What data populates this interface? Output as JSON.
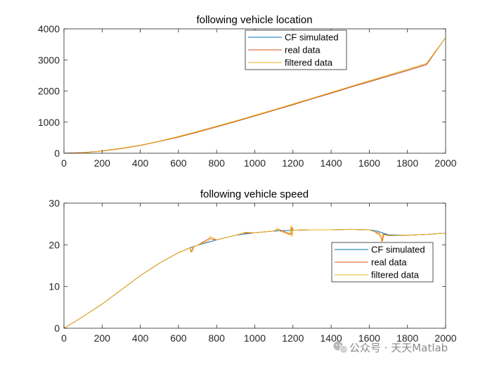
{
  "chart_data": [
    {
      "type": "line",
      "title": "following vehicle location",
      "xlim": [
        0,
        2000
      ],
      "ylim": [
        0,
        4000
      ],
      "xticks": [
        "0",
        "200",
        "400",
        "600",
        "800",
        "1000",
        "1200",
        "1400",
        "1600",
        "1800",
        "2000"
      ],
      "yticks": [
        "0",
        "1000",
        "2000",
        "3000",
        "4000"
      ],
      "grid": false,
      "legend": {
        "placement": "top-center",
        "entries": [
          "CF simulated",
          "real data",
          "filtered data"
        ]
      },
      "series": [
        {
          "name": "CF simulated",
          "color": "#0072BD",
          "x": [
            0,
            100,
            200,
            300,
            400,
            500,
            600,
            700,
            800,
            900,
            1000,
            1100,
            1200,
            1300,
            1400,
            1500,
            1600,
            1700,
            1800,
            1900,
            2000
          ],
          "y": [
            0,
            20,
            70,
            150,
            250,
            380,
            520,
            680,
            850,
            1020,
            1200,
            1380,
            1560,
            1750,
            1930,
            2120,
            2300,
            2480,
            2660,
            2850,
            3720
          ]
        },
        {
          "name": "real data",
          "color": "#D95319",
          "x": [
            0,
            100,
            200,
            300,
            400,
            500,
            600,
            700,
            800,
            900,
            1000,
            1100,
            1200,
            1300,
            1400,
            1500,
            1600,
            1700,
            1800,
            1900,
            2000
          ],
          "y": [
            0,
            20,
            70,
            150,
            250,
            380,
            520,
            680,
            850,
            1020,
            1200,
            1380,
            1560,
            1750,
            1930,
            2120,
            2300,
            2480,
            2660,
            2850,
            3720
          ]
        },
        {
          "name": "filtered data",
          "color": "#EDB120",
          "x": [
            0,
            50,
            100,
            150,
            200,
            300,
            400,
            500,
            600,
            700,
            800,
            900,
            1000,
            1100,
            1200,
            1300,
            1400,
            1500,
            1600,
            1700,
            1800,
            1900,
            2000
          ],
          "y": [
            0,
            2,
            12,
            40,
            80,
            160,
            260,
            390,
            540,
            700,
            870,
            1040,
            1220,
            1400,
            1585,
            1770,
            1955,
            2145,
            2330,
            2515,
            2700,
            2890,
            3720
          ]
        }
      ]
    },
    {
      "type": "line",
      "title": "following vehicle speed",
      "xlim": [
        0,
        2000
      ],
      "ylim": [
        0,
        30
      ],
      "xticks": [
        "0",
        "200",
        "400",
        "600",
        "800",
        "1000",
        "1200",
        "1400",
        "1600",
        "1800",
        "2000"
      ],
      "yticks": [
        "0",
        "10",
        "20",
        "30"
      ],
      "grid": false,
      "legend": {
        "placement": "middle-right",
        "entries": [
          "CF simulated",
          "real data",
          "filtered data"
        ]
      },
      "series": [
        {
          "name": "CF simulated",
          "color": "#0072BD",
          "x": [
            0,
            100,
            200,
            300,
            400,
            500,
            600,
            660,
            700,
            800,
            900,
            1000,
            1100,
            1200,
            1300,
            1400,
            1500,
            1600,
            1640,
            1700,
            1800,
            1900,
            2000
          ],
          "y": [
            0,
            2.8,
            5.8,
            9.2,
            12.6,
            15.6,
            18.1,
            19.3,
            19.9,
            21.2,
            22.3,
            22.9,
            23.3,
            23.5,
            23.6,
            23.6,
            23.7,
            23.6,
            23.3,
            22.4,
            22.3,
            22.5,
            22.8
          ]
        },
        {
          "name": "real data",
          "color": "#D95319",
          "x": [
            0,
            100,
            200,
            300,
            400,
            500,
            600,
            660,
            670,
            680,
            700,
            760,
            800,
            900,
            940,
            1000,
            1100,
            1120,
            1190,
            1195,
            1200,
            1300,
            1400,
            1500,
            1600,
            1650,
            1670,
            1675,
            1700,
            1800,
            1900,
            2000
          ],
          "y": [
            0,
            2.8,
            5.8,
            9.2,
            12.6,
            15.6,
            18.1,
            19.3,
            18.3,
            19.5,
            19.9,
            21.5,
            21.2,
            22.3,
            22.8,
            22.9,
            23.3,
            23.8,
            22.5,
            24.2,
            23.5,
            23.6,
            23.6,
            23.7,
            23.6,
            22.8,
            21.0,
            22.6,
            22.2,
            22.3,
            22.5,
            22.8
          ]
        },
        {
          "name": "filtered data",
          "color": "#EDB120",
          "x": [
            0,
            100,
            200,
            300,
            400,
            500,
            600,
            660,
            665,
            670,
            675,
            680,
            700,
            760,
            765,
            800,
            900,
            940,
            945,
            1000,
            1100,
            1120,
            1125,
            1185,
            1190,
            1195,
            1200,
            1250,
            1300,
            1400,
            1500,
            1600,
            1630,
            1640,
            1660,
            1665,
            1670,
            1675,
            1700,
            1800,
            1900,
            2000
          ],
          "y": [
            0,
            2.8,
            5.8,
            9.2,
            12.6,
            15.6,
            18.1,
            19.3,
            18.2,
            18.4,
            19.6,
            19.5,
            19.9,
            21.0,
            22.0,
            21.2,
            22.3,
            22.8,
            23.0,
            22.9,
            23.3,
            23.9,
            23.4,
            22.4,
            24.6,
            22.0,
            23.5,
            23.6,
            23.6,
            23.6,
            23.7,
            23.6,
            23.1,
            22.6,
            22.3,
            20.5,
            22.6,
            22.4,
            22.2,
            22.3,
            22.5,
            22.8
          ]
        }
      ]
    }
  ],
  "watermark": {
    "text": "公众号 · 天天Matlab",
    "icon": "wechat-icon"
  }
}
